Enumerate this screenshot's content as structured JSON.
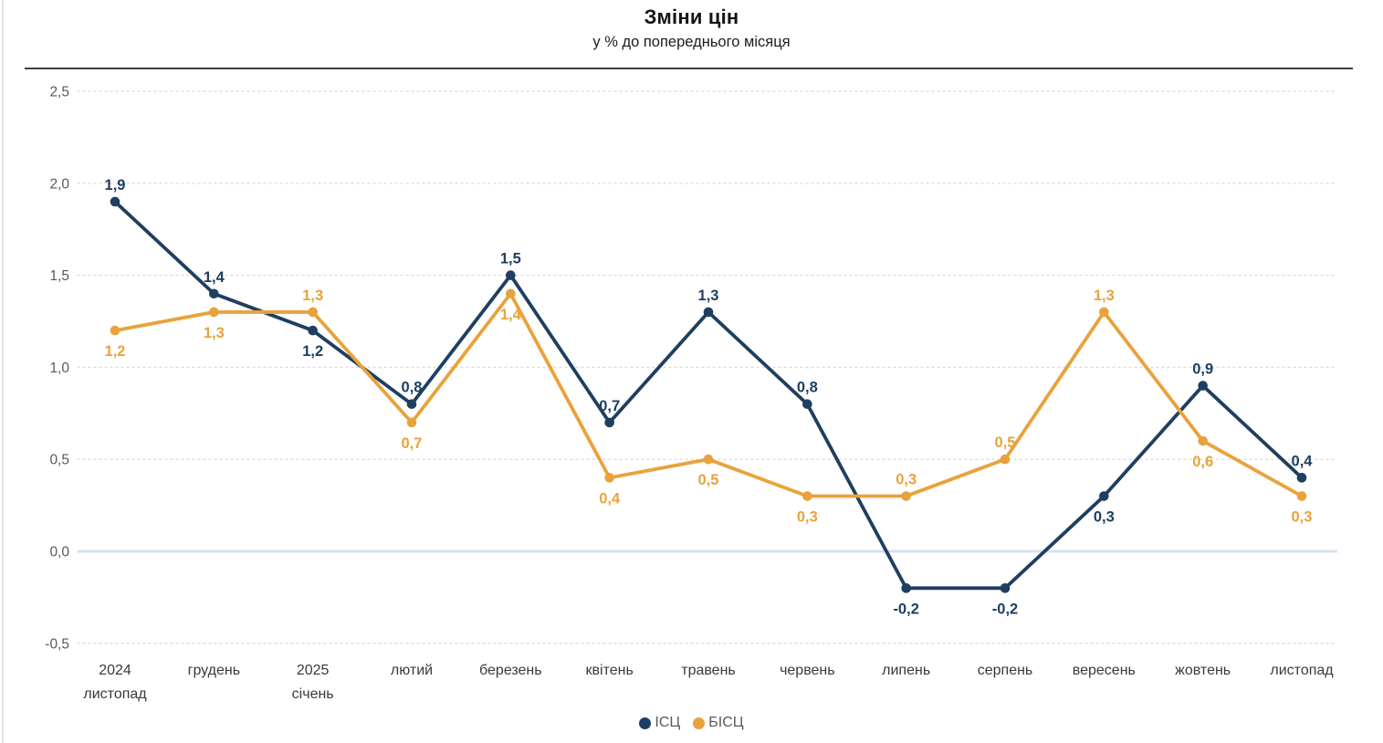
{
  "chart_data": {
    "type": "line",
    "title": "Зміни цін",
    "subtitle": "у % до попереднього місяця",
    "categories": [
      "2024\nлистопад",
      "грудень",
      "2025\nсічень",
      "лютий",
      "березень",
      "квітень",
      "травень",
      "червень",
      "липень",
      "серпень",
      "вересень",
      "жовтень",
      "листопад"
    ],
    "series": [
      {
        "name": "ІСЦ",
        "color": "#1E3F60",
        "values": [
          1.9,
          1.4,
          1.2,
          0.8,
          1.5,
          0.7,
          1.3,
          0.8,
          -0.2,
          -0.2,
          0.3,
          0.9,
          0.4
        ]
      },
      {
        "name": "БІСЦ",
        "color": "#E9A23B",
        "values": [
          1.2,
          1.3,
          1.3,
          0.7,
          1.4,
          0.4,
          0.5,
          0.3,
          0.3,
          0.5,
          1.3,
          0.6,
          0.3
        ]
      }
    ],
    "ylim": [
      -0.5,
      2.5
    ],
    "y_tick_step": 0.5,
    "y_tick_labels": [
      "2,5",
      "2,0",
      "1,5",
      "1,0",
      "0,5",
      "0,0",
      "-0,5"
    ],
    "decimal_separator": ",",
    "grid": "horizontal-dotted",
    "zero_line": true,
    "data_labels": true,
    "legend_position": "bottom-center"
  },
  "colors": {
    "gridline": "#DBDBDB",
    "zero_line": "#D6E2EE",
    "y_axis_text": "#595959",
    "category_text": "#3A3A3A",
    "divider": "#404040"
  },
  "legend": {
    "items": [
      {
        "label": "ІСЦ",
        "color": "#1E3F60"
      },
      {
        "label": "БІСЦ",
        "color": "#E9A23B"
      }
    ]
  }
}
